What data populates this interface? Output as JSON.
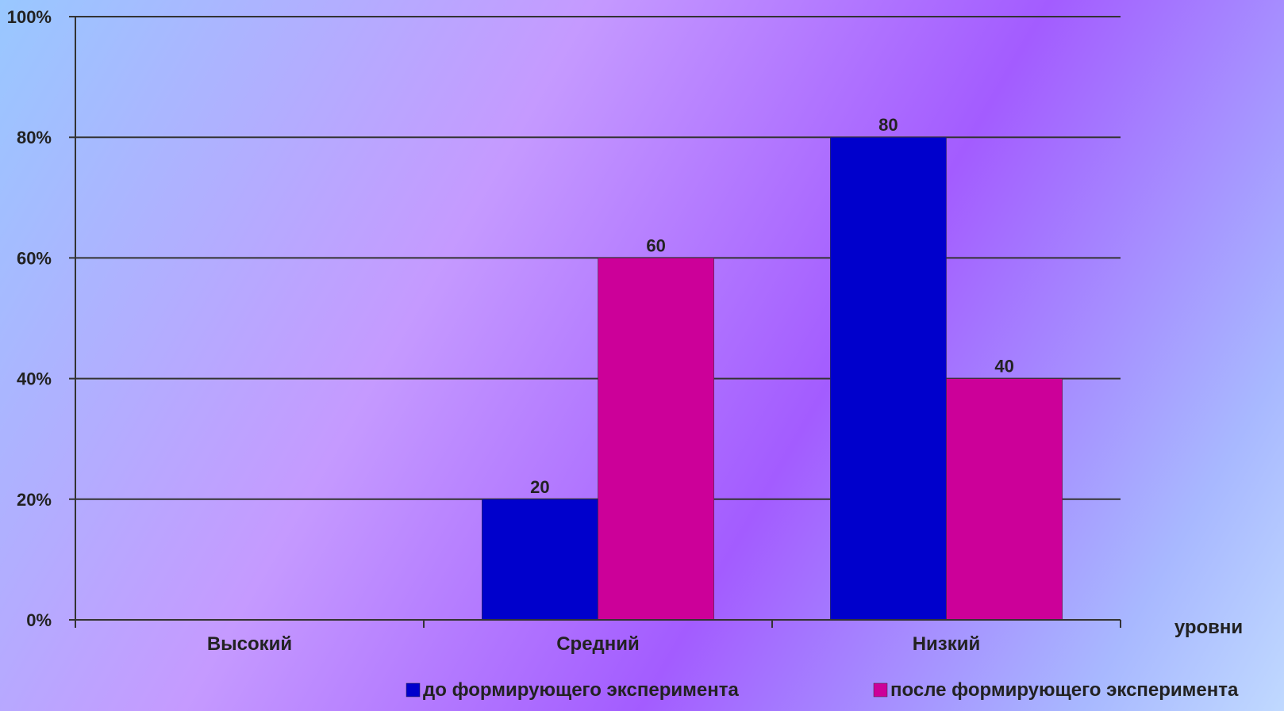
{
  "chart_data": {
    "type": "bar",
    "categories": [
      "Высокий",
      "Средний",
      "Низкий"
    ],
    "series": [
      {
        "name": "до формирующего эксперимента",
        "values": [
          0,
          20,
          80
        ],
        "color": "#0000cc"
      },
      {
        "name": "после формирующего эксперимента",
        "values": [
          0,
          60,
          40
        ],
        "color": "#cc0099"
      }
    ],
    "data_labels": [
      [
        null,
        "20",
        "80"
      ],
      [
        null,
        "60",
        "40"
      ]
    ],
    "title": "",
    "xlabel": "уровни",
    "ylabel": "",
    "ylim": [
      0,
      100
    ],
    "yticks": [
      0,
      20,
      40,
      60,
      80,
      100
    ],
    "ytick_labels": [
      "0%",
      "20%",
      "40%",
      "60%",
      "80%",
      "100%"
    ],
    "grid": true,
    "legend_position": "bottom"
  }
}
